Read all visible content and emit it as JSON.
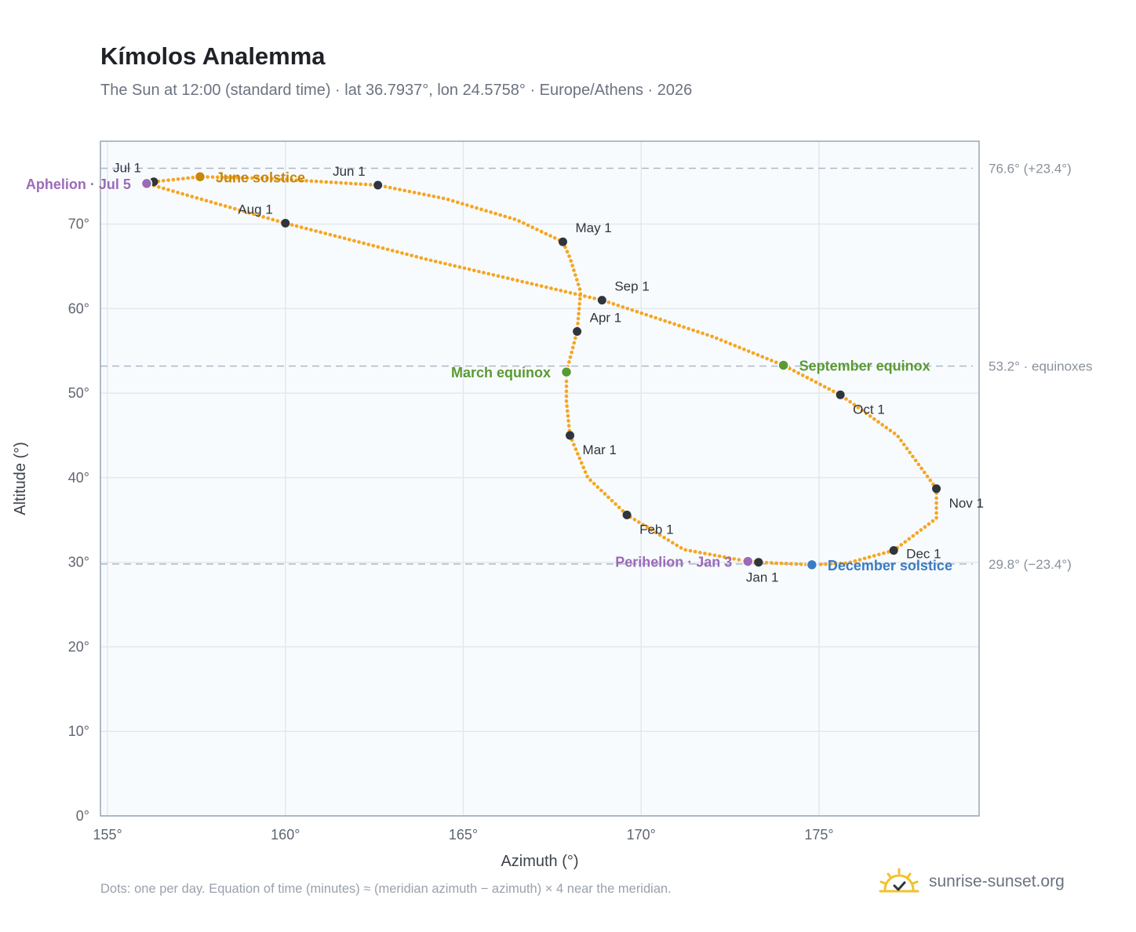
{
  "title": "Kímolos Analemma",
  "subtitle": "The Sun at 12:00 (standard time) · lat 36.7937°, lon 24.5758° · Europe/Athens · 2026",
  "footnote": "Dots: one per day. Equation of time (minutes) ≈ (meridian azimuth − azimuth) × 4 near the meridian.",
  "brand": {
    "name": "sunrise-sunset.org",
    "icon": "sun-check-icon"
  },
  "colors": {
    "path": "#f5a623",
    "month_marker": "#2f353c",
    "aphelion": "#9b6bb8",
    "perihelion": "#9b6bb8",
    "june_solstice": "#c8860a",
    "december_solstice": "#3a7cc2",
    "equinox": "#5a9a32",
    "plot_bg": "#f8fbfe",
    "grid": "#e3e8ee",
    "frame": "#9aa5b1",
    "reference": "#aeb8c4"
  },
  "chart_data": {
    "type": "scatter",
    "xlabel": "Azimuth (°)",
    "ylabel": "Altitude (°)",
    "xlim": [
      154.8,
      179.5
    ],
    "ylim": [
      0,
      79.8
    ],
    "grid": true,
    "x_ticks": [
      155,
      160,
      165,
      170,
      175
    ],
    "x_tick_labels": [
      "155°",
      "160°",
      "165°",
      "170°",
      "175°"
    ],
    "y_ticks": [
      0,
      10,
      20,
      30,
      40,
      50,
      60,
      70
    ],
    "y_tick_labels": [
      "0°",
      "10°",
      "20°",
      "30°",
      "40°",
      "50°",
      "60°",
      "70°"
    ],
    "reference_lines": [
      {
        "y": 76.6,
        "label": "76.6° (+23.4°)"
      },
      {
        "y": 53.2,
        "label": "53.2° · equinoxes"
      },
      {
        "y": 29.8,
        "label": "29.8° (−23.4°)"
      }
    ],
    "month_markers": [
      {
        "label": "Jan 1",
        "az": 173.3,
        "alt": 30.0,
        "pos": "below"
      },
      {
        "label": "Feb 1",
        "az": 169.6,
        "alt": 35.6,
        "pos": "below-right"
      },
      {
        "label": "Mar 1",
        "az": 168.0,
        "alt": 45.0,
        "pos": "below-right"
      },
      {
        "label": "Apr 1",
        "az": 168.2,
        "alt": 57.3,
        "pos": "above-right"
      },
      {
        "label": "May 1",
        "az": 167.8,
        "alt": 67.9,
        "pos": "above-right"
      },
      {
        "label": "Jun 1",
        "az": 162.6,
        "alt": 74.6,
        "pos": "above-left"
      },
      {
        "label": "Jul 1",
        "az": 156.3,
        "alt": 75.0,
        "pos": "above-left"
      },
      {
        "label": "Aug 1",
        "az": 160.0,
        "alt": 70.1,
        "pos": "above-left"
      },
      {
        "label": "Sep 1",
        "az": 168.9,
        "alt": 61.0,
        "pos": "above-right"
      },
      {
        "label": "Oct 1",
        "az": 175.6,
        "alt": 49.8,
        "pos": "below-right"
      },
      {
        "label": "Nov 1",
        "az": 178.3,
        "alt": 38.7,
        "pos": "below-right"
      },
      {
        "label": "Dec 1",
        "az": 177.1,
        "alt": 31.4,
        "pos": "right"
      }
    ],
    "events": [
      {
        "label": "Aphelion · Jul 5",
        "az": 156.1,
        "alt": 74.8,
        "color_key": "aphelion",
        "pos": "left"
      },
      {
        "label": "June solstice",
        "az": 157.6,
        "alt": 75.6,
        "color_key": "june_solstice",
        "pos": "right"
      },
      {
        "label": "March equinox",
        "az": 167.9,
        "alt": 52.5,
        "color_key": "equinox",
        "pos": "left"
      },
      {
        "label": "September equinox",
        "az": 174.0,
        "alt": 53.3,
        "color_key": "equinox",
        "pos": "right"
      },
      {
        "label": "Perihelion · Jan 3",
        "az": 173.0,
        "alt": 30.1,
        "color_key": "perihelion",
        "pos": "left"
      },
      {
        "label": "December solstice",
        "az": 174.8,
        "alt": 29.7,
        "color_key": "december_solstice",
        "pos": "right"
      }
    ],
    "path": [
      [
        173.3,
        30.0
      ],
      [
        173.0,
        30.1
      ],
      [
        171.2,
        31.5
      ],
      [
        169.6,
        35.6
      ],
      [
        168.5,
        40.0
      ],
      [
        168.0,
        45.0
      ],
      [
        167.9,
        49.0
      ],
      [
        167.9,
        52.5
      ],
      [
        168.2,
        57.3
      ],
      [
        168.3,
        62.0
      ],
      [
        168.0,
        66.0
      ],
      [
        167.8,
        67.9
      ],
      [
        166.5,
        70.5
      ],
      [
        164.5,
        73.0
      ],
      [
        162.6,
        74.6
      ],
      [
        159.5,
        75.4
      ],
      [
        157.6,
        75.6
      ],
      [
        156.3,
        75.0
      ],
      [
        156.1,
        74.8
      ],
      [
        157.0,
        73.7
      ],
      [
        160.0,
        70.1
      ],
      [
        164.0,
        65.8
      ],
      [
        168.9,
        61.0
      ],
      [
        172.0,
        56.7
      ],
      [
        174.0,
        53.3
      ],
      [
        175.6,
        49.8
      ],
      [
        177.2,
        45.0
      ],
      [
        178.3,
        38.7
      ],
      [
        178.3,
        35.2
      ],
      [
        177.1,
        31.4
      ],
      [
        175.8,
        29.9
      ],
      [
        174.8,
        29.7
      ],
      [
        173.3,
        30.0
      ]
    ]
  }
}
